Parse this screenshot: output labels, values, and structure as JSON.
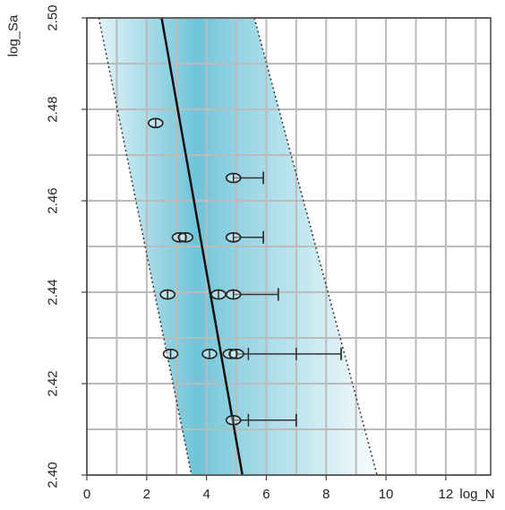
{
  "chart_data": {
    "type": "scatter",
    "xlabel": "log_N",
    "ylabel": "log_Sa",
    "xlim": [
      0,
      13.5
    ],
    "ylim": [
      2.4,
      2.5
    ],
    "x_ticks": [
      0,
      2,
      4,
      6,
      8,
      10,
      12
    ],
    "y_ticks": [
      2.4,
      2.42,
      2.44,
      2.46,
      2.48,
      2.5
    ],
    "y_tick_labels": [
      "2.40",
      "2.42",
      "2.44",
      "2.46",
      "2.48",
      "2.50"
    ],
    "x_tick_labels": [
      "0",
      "2",
      "4",
      "6",
      "8",
      "10",
      "12"
    ],
    "grid": true,
    "colors": {
      "band": "#3fb0cc",
      "line": "#111111",
      "grid": "#bbbbbb",
      "marker": "#222222"
    },
    "fit_line": {
      "points": [
        [
          2.5,
          2.5
        ],
        [
          5.2,
          2.4
        ]
      ]
    },
    "bound_lower": {
      "points": [
        [
          0.4,
          2.5
        ],
        [
          3.5,
          2.4
        ]
      ]
    },
    "bound_upper": {
      "points": [
        [
          5.6,
          2.5
        ],
        [
          9.7,
          2.4
        ]
      ]
    },
    "points": [
      {
        "x": 2.3,
        "y": 2.477
      },
      {
        "x": 4.9,
        "y": 2.465
      },
      {
        "x": 3.1,
        "y": 2.452
      },
      {
        "x": 3.3,
        "y": 2.452
      },
      {
        "x": 4.9,
        "y": 2.452
      },
      {
        "x": 2.7,
        "y": 2.4395
      },
      {
        "x": 4.4,
        "y": 2.4395
      },
      {
        "x": 4.9,
        "y": 2.4395
      },
      {
        "x": 2.8,
        "y": 2.4265
      },
      {
        "x": 4.1,
        "y": 2.4265
      },
      {
        "x": 4.8,
        "y": 2.4265
      },
      {
        "x": 5.0,
        "y": 2.4265
      },
      {
        "x": 4.9,
        "y": 2.412
      }
    ],
    "runouts": [
      {
        "y": 2.465,
        "x_start": 4.9,
        "x_end": 5.9
      },
      {
        "y": 2.452,
        "x_start": 4.9,
        "x_end": 5.9
      },
      {
        "y": 2.4395,
        "x_start": 4.9,
        "x_end": 6.4
      },
      {
        "y": 2.4265,
        "x_start": 5.0,
        "x_end": 8.5,
        "mid_ticks": [
          5.4,
          7.0
        ]
      },
      {
        "y": 2.412,
        "x_start": 4.9,
        "x_end": 7.0,
        "mid_ticks": [
          5.4
        ]
      }
    ]
  }
}
